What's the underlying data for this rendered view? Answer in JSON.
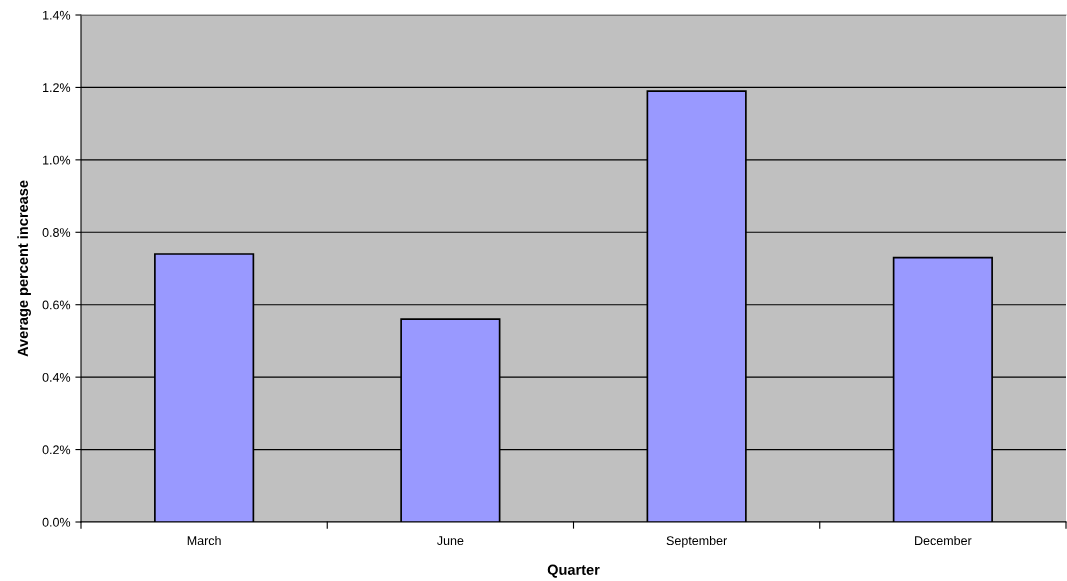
{
  "chart_data": {
    "type": "bar",
    "xlabel": "Quarter",
    "ylabel": "Average percent increase",
    "categories": [
      "March",
      "June",
      "September",
      "December"
    ],
    "values": [
      0.74,
      0.56,
      1.19,
      0.73
    ],
    "color": "#9999ff",
    "ylim": [
      0,
      1.4
    ],
    "yticks": [
      {
        "value": 0,
        "label": "0.0%"
      },
      {
        "value": 0.2,
        "label": "0.2%"
      },
      {
        "value": 0.4,
        "label": "0.4%"
      },
      {
        "value": 0.6,
        "label": "0.6%"
      },
      {
        "value": 0.8,
        "label": "0.8%"
      },
      {
        "value": 1.0,
        "label": "1.0%"
      },
      {
        "value": 1.2,
        "label": "1.2%"
      },
      {
        "value": 1.4,
        "label": "1.4%"
      }
    ],
    "grid": "y",
    "legend": false
  }
}
